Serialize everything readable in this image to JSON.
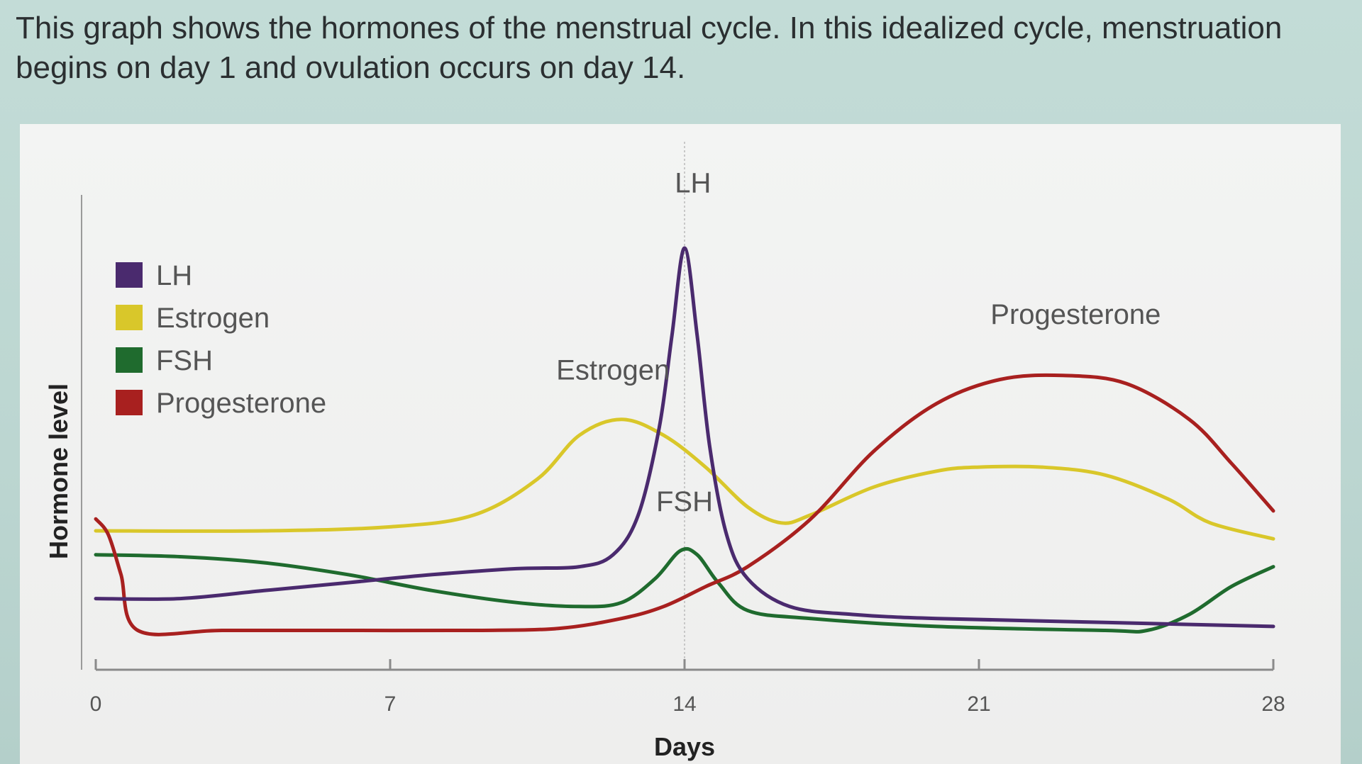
{
  "description": "This graph shows the hormones of the menstrual cycle. In this idealized cycle, menstruation begins on day 1 and ovulation occurs on day 14.",
  "chart_data": {
    "type": "line",
    "title": "",
    "xlabel": "Days",
    "ylabel": "Hormone level",
    "xlim": [
      0,
      28
    ],
    "ylim": [
      0,
      100
    ],
    "x_ticks": [
      0,
      7,
      14,
      21,
      28
    ],
    "grid": false,
    "legend": {
      "position": "top-left",
      "entries": [
        "LH",
        "Estrogen",
        "FSH",
        "Progesterone"
      ]
    },
    "series": [
      {
        "name": "LH",
        "color": "#4a2a6e",
        "points": [
          [
            0,
            12
          ],
          [
            2,
            12
          ],
          [
            4,
            14
          ],
          [
            6,
            16
          ],
          [
            8,
            18
          ],
          [
            10,
            19.5
          ],
          [
            11.5,
            20
          ],
          [
            12.3,
            23
          ],
          [
            12.9,
            33
          ],
          [
            13.4,
            55
          ],
          [
            13.7,
            78
          ],
          [
            14,
            100
          ],
          [
            14.3,
            78
          ],
          [
            14.6,
            50
          ],
          [
            15,
            28
          ],
          [
            15.5,
            17
          ],
          [
            16.5,
            10
          ],
          [
            18,
            8
          ],
          [
            20,
            7
          ],
          [
            24,
            6
          ],
          [
            28,
            5
          ]
        ]
      },
      {
        "name": "Estrogen",
        "color": "#d9c72a",
        "points": [
          [
            0,
            29
          ],
          [
            4,
            29
          ],
          [
            7,
            30
          ],
          [
            9,
            33
          ],
          [
            10.5,
            42
          ],
          [
            11.5,
            53
          ],
          [
            12.5,
            57
          ],
          [
            13.5,
            53
          ],
          [
            14.5,
            45
          ],
          [
            15.5,
            35
          ],
          [
            16.3,
            31
          ],
          [
            17,
            33
          ],
          [
            18.5,
            40
          ],
          [
            20,
            44
          ],
          [
            21,
            45
          ],
          [
            22.5,
            45
          ],
          [
            24,
            43
          ],
          [
            25.5,
            37
          ],
          [
            26.5,
            31
          ],
          [
            28,
            27
          ]
        ]
      },
      {
        "name": "FSH",
        "color": "#1f6b2e",
        "points": [
          [
            0,
            23
          ],
          [
            2,
            22.5
          ],
          [
            4,
            21
          ],
          [
            6,
            18
          ],
          [
            8,
            14
          ],
          [
            10,
            11
          ],
          [
            11.5,
            10
          ],
          [
            12.5,
            11
          ],
          [
            13.3,
            17
          ],
          [
            13.9,
            24
          ],
          [
            14.3,
            23
          ],
          [
            14.8,
            16
          ],
          [
            15.5,
            9
          ],
          [
            17,
            7
          ],
          [
            20,
            5
          ],
          [
            24,
            4
          ],
          [
            25,
            4
          ],
          [
            26,
            8
          ],
          [
            27,
            15
          ],
          [
            28,
            20
          ]
        ]
      },
      {
        "name": "Progesterone",
        "color": "#a8201f",
        "points": [
          [
            0,
            32
          ],
          [
            0.3,
            28
          ],
          [
            0.6,
            18
          ],
          [
            1,
            4
          ],
          [
            3,
            4
          ],
          [
            6,
            4
          ],
          [
            9,
            4
          ],
          [
            11,
            4.5
          ],
          [
            12.5,
            7
          ],
          [
            13.5,
            10
          ],
          [
            14.5,
            15
          ],
          [
            15.5,
            20
          ],
          [
            17,
            32
          ],
          [
            18.5,
            49
          ],
          [
            20,
            61
          ],
          [
            21.5,
            67
          ],
          [
            23,
            68
          ],
          [
            24.5,
            66
          ],
          [
            26,
            57
          ],
          [
            27,
            46
          ],
          [
            28,
            34
          ]
        ]
      }
    ],
    "annotations": [
      {
        "text": "LH",
        "x": 14.2,
        "y": 114
      },
      {
        "text": "Estrogen",
        "x": 12.3,
        "y": 67
      },
      {
        "text": "FSH",
        "x": 14,
        "y": 34
      },
      {
        "text": "Progesterone",
        "x": 23.3,
        "y": 81
      }
    ]
  }
}
